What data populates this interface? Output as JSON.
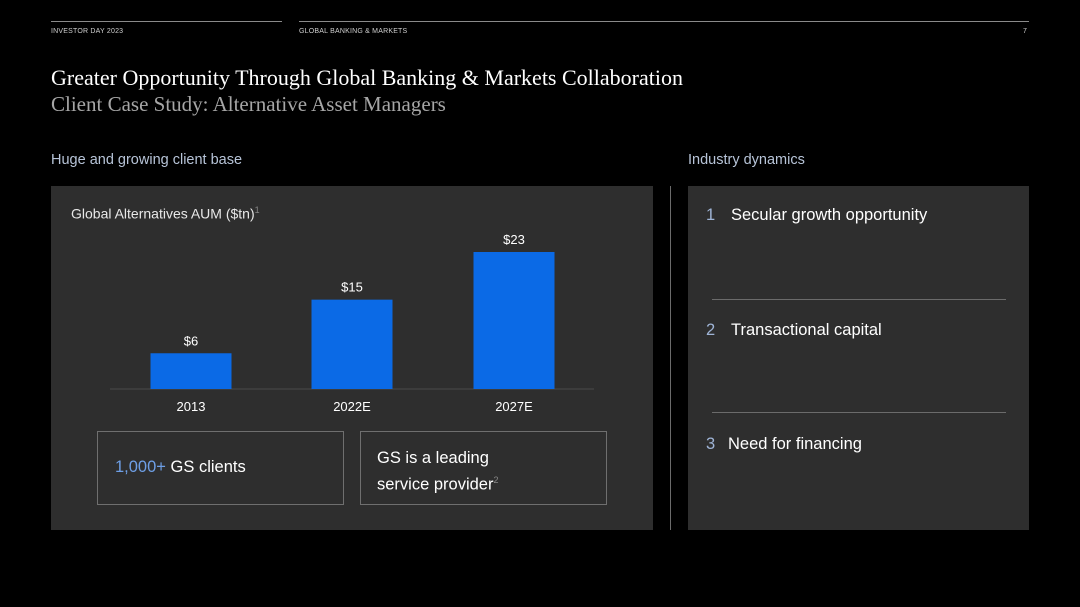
{
  "header": {
    "left": "INVESTOR DAY 2023",
    "center": "GLOBAL BANKING & MARKETS",
    "page_number": "7"
  },
  "title": "Greater Opportunity Through Global Banking & Markets Collaboration",
  "subtitle": "Client Case Study: Alternative Asset Managers",
  "left_section": {
    "heading": "Huge and growing client base",
    "callout1_accent": "1,000+",
    "callout1_text": "GS clients",
    "callout2_line1": "GS is a leading",
    "callout2_line2": "service provider",
    "callout2_footnote": "2"
  },
  "right_section": {
    "heading": "Industry dynamics",
    "items": [
      {
        "num": "1",
        "text": "Secular growth opportunity"
      },
      {
        "num": "2",
        "text": "Transactional capital"
      },
      {
        "num": "3",
        "text": "Need for financing"
      }
    ]
  },
  "chart_data": {
    "type": "bar",
    "title": "Global Alternatives AUM ($tn)",
    "title_footnote": "1",
    "categories": [
      "2013",
      "2022E",
      "2027E"
    ],
    "values": [
      6,
      15,
      23
    ],
    "data_labels": [
      "$6",
      "$15",
      "$23"
    ],
    "ylim": [
      0,
      23
    ],
    "grid": false,
    "bar_color": "#0b6ae6"
  },
  "colors": {
    "background": "#000000",
    "panel": "#2e2e2e",
    "accent": "#6e9fe6",
    "bar": "#0b6ae6"
  }
}
